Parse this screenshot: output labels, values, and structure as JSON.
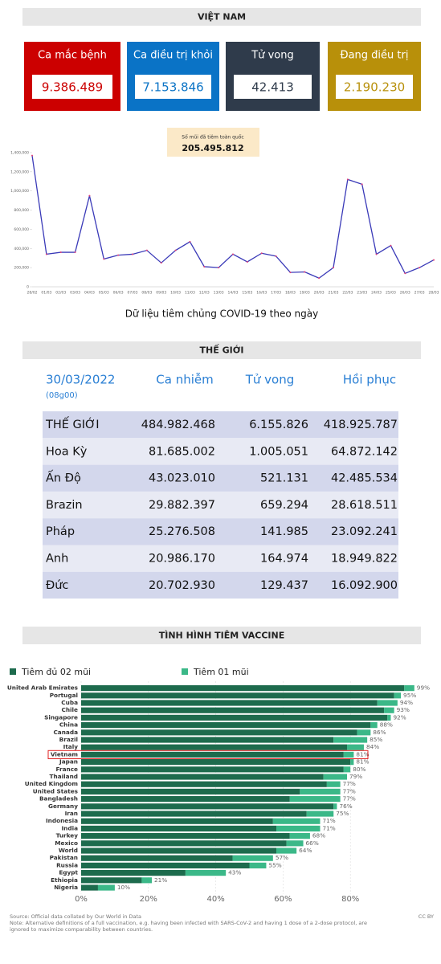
{
  "header": {
    "title": "VIỆT NAM"
  },
  "stats": [
    {
      "label": "Ca mắc bệnh",
      "value": "9.386.489",
      "color": "#cc0000"
    },
    {
      "label": "Ca điều trị khỏi",
      "value": "7.153.846",
      "color": "#0a73c6"
    },
    {
      "label": "Tử vong",
      "value": "42.413",
      "color": "#2f3b4b"
    },
    {
      "label": "Đang điều trị",
      "value": "2.190.230",
      "color": "#b8900a"
    }
  ],
  "vaccination_badge": {
    "label": "Số mũi đã tiêm toàn quốc",
    "value": "205.495.812"
  },
  "chart_data": [
    {
      "type": "line",
      "caption": "Dữ liệu tiêm chủng COVID-19 theo ngày",
      "categories": [
        "28/02",
        "01/03",
        "02/03",
        "03/03",
        "04/03",
        "05/03",
        "06/03",
        "07/03",
        "08/03",
        "09/03",
        "10/03",
        "11/03",
        "12/03",
        "13/03",
        "14/03",
        "15/03",
        "16/03",
        "17/03",
        "18/03",
        "19/03",
        "20/03",
        "21/03",
        "22/03",
        "23/03",
        "24/03",
        "25/03",
        "26/03",
        "27/03",
        "28/03"
      ],
      "series": [
        {
          "color": "#3a3ab8",
          "marker_color": "#e0407a",
          "values": [
            1370000,
            340000,
            360000,
            360000,
            950000,
            290000,
            330000,
            340000,
            380000,
            250000,
            380000,
            470000,
            210000,
            200000,
            340000,
            260000,
            350000,
            320000,
            150000,
            155000,
            90000,
            200000,
            1120000,
            1070000,
            340000,
            430000,
            140000,
            200000,
            280000
          ]
        }
      ],
      "ylim": [
        0,
        1400000
      ],
      "yticks": [
        0,
        {
          "value": 200000,
          "label": "200,000"
        },
        {
          "value": 400000,
          "label": "400,000"
        },
        {
          "value": 600000,
          "label": "600,000"
        },
        {
          "value": 800000,
          "label": "800,000"
        },
        {
          "value": 1000000,
          "label": "1,000,000"
        },
        {
          "value": 1200000,
          "label": "1,200,000"
        },
        {
          "value": 1400000,
          "label": "1,400,000"
        }
      ]
    },
    {
      "type": "bar",
      "orientation": "horizontal",
      "categories": [
        "United Arab Emirates",
        "Portugal",
        "Cuba",
        "Chile",
        "Singapore",
        "China",
        "Canada",
        "Brazil",
        "Italy",
        "Vietnam",
        "Japan",
        "France",
        "Thailand",
        "United Kingdom",
        "United States",
        "Bangladesh",
        "Germany",
        "Iran",
        "Indonesia",
        "India",
        "Turkey",
        "Mexico",
        "World",
        "Pakistan",
        "Russia",
        "Egypt",
        "Ethiopia",
        "Nigeria"
      ],
      "series": [
        {
          "name": "Tiêm đủ 02 mũi",
          "color": "#1d6b4d",
          "values": [
            96,
            93,
            88,
            90,
            91,
            86,
            82,
            75,
            79,
            78,
            80,
            78,
            72,
            73,
            65,
            62,
            75,
            67,
            57,
            58,
            62,
            61,
            58,
            45,
            50,
            31,
            18,
            5
          ]
        },
        {
          "name": "Tiêm 01 mũi",
          "color": "#3bb888",
          "values": [
            3,
            2,
            6,
            3,
            1,
            2,
            4,
            10,
            5,
            3,
            1,
            2,
            7,
            4,
            12,
            15,
            1,
            8,
            14,
            13,
            6,
            5,
            6,
            12,
            5,
            12,
            3,
            5
          ]
        }
      ],
      "totals": {
        "values": [
          99,
          95,
          94,
          93,
          92,
          88,
          86,
          85,
          84,
          81,
          81,
          80,
          79,
          77,
          77,
          77,
          76,
          75,
          71,
          71,
          68,
          66,
          64,
          57,
          55,
          43,
          21,
          10
        ],
        "value_labels": [
          "99%",
          "95%",
          "94%",
          "93%",
          "92%",
          "88%",
          "86%",
          "85%",
          "84%",
          "81%",
          "81%",
          "80%",
          "79%",
          "77%",
          "77%",
          "77%",
          "76%",
          "75%",
          "71%",
          "71%",
          "68%",
          "66%",
          "64%",
          "57%",
          "55%",
          "43%",
          "21%",
          "10%"
        ]
      },
      "xlim": [
        0,
        100
      ],
      "xticks": [
        {
          "value": 0,
          "label": "0%"
        },
        {
          "value": 20,
          "label": "20%"
        },
        {
          "value": 40,
          "label": "40%"
        },
        {
          "value": 60,
          "label": "60%"
        },
        {
          "value": 80,
          "label": "80%"
        }
      ],
      "grid": true
    }
  ],
  "world": {
    "title": "THẾ GIỚI",
    "date": "30/03/2022",
    "time": "(08g00)",
    "columns": [
      "Ca nhiễm",
      "Tử vong",
      "Hồi phục"
    ],
    "rows": [
      [
        "THẾ GIỚI",
        "484.982.468",
        "6.155.826",
        "418.925.787"
      ],
      [
        "Hoa Kỳ",
        "81.685.002",
        "1.005.051",
        "64.872.142"
      ],
      [
        "Ấn Độ",
        "43.023.010",
        "521.131",
        "42.485.534"
      ],
      [
        "Brazin",
        "29.882.397",
        "659.294",
        "28.618.511"
      ],
      [
        "Pháp",
        "25.276.508",
        "141.985",
        "23.092.241"
      ],
      [
        "Anh",
        "20.986.170",
        "164.974",
        "18.949.822"
      ],
      [
        "Đức",
        "20.702.930",
        "129.437",
        "16.092.900"
      ]
    ]
  },
  "vaccine_section": {
    "title": "TÌNH HÌNH TIÊM VACCINE"
  },
  "footer": {
    "source": "Source: Official data collated by Our World in Data",
    "note": "Note: Alternative definitions of a full vaccination, e.g. having been infected with SARS-CoV-2 and having 1 dose of a 2-dose protocol, are",
    "note_cont": "ignored to maximize comparability between countries.",
    "license": "CC BY"
  }
}
